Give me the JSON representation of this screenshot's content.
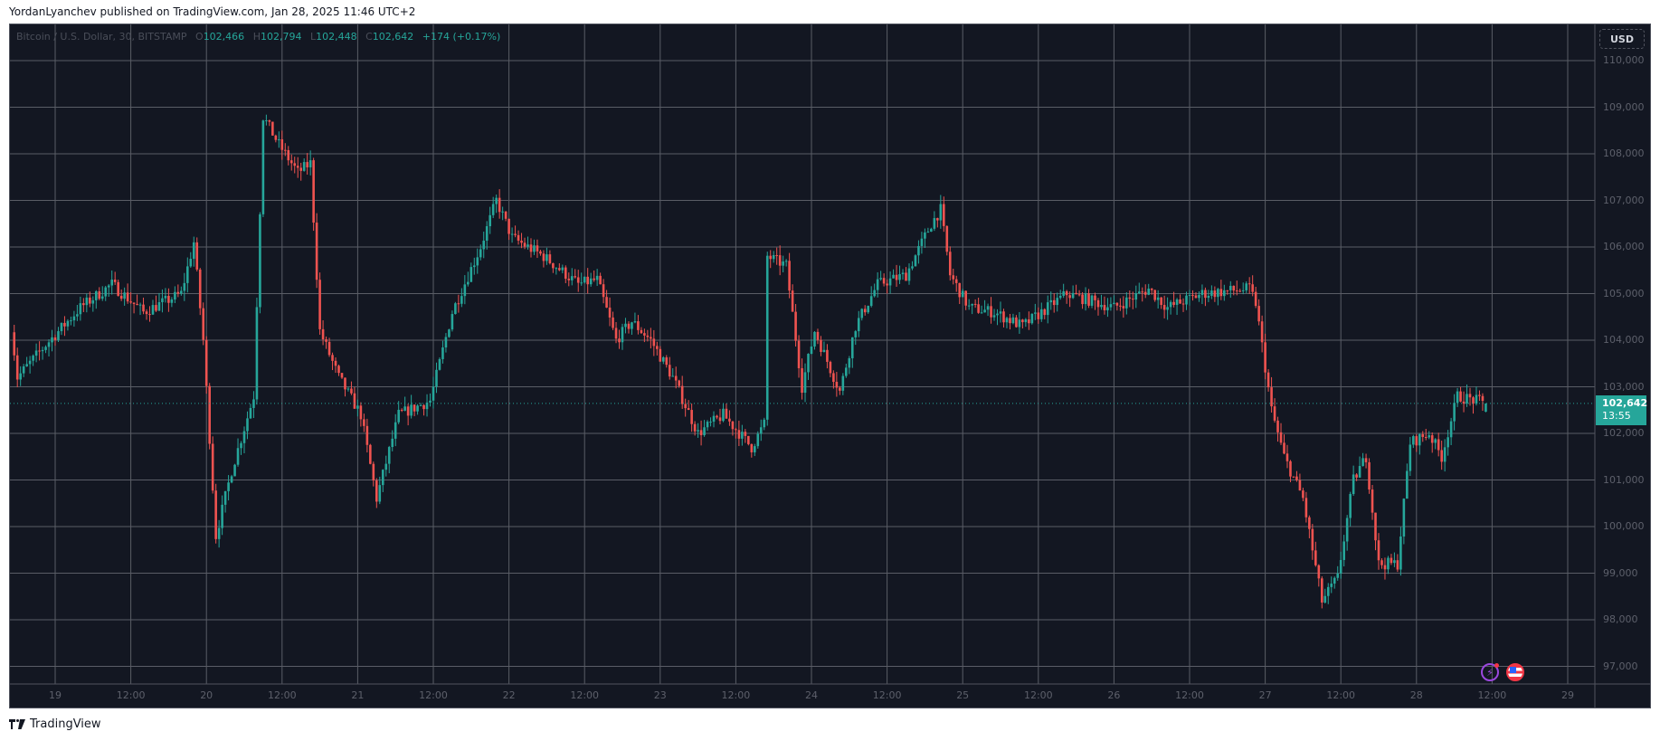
{
  "header": {
    "published_line": "YordanLyanchev published on TradingView.com, Jan 28, 2025 11:46 UTC+2"
  },
  "legend": {
    "symbol": "Bitcoin / U.S. Dollar, 30, BITSTAMP",
    "open_label": "O",
    "open": "102,466",
    "high_label": "H",
    "high": "102,794",
    "low_label": "L",
    "low": "102,448",
    "close_label": "C",
    "close": "102,642",
    "change": "+174 (+0.17%)"
  },
  "price_axis": {
    "currency": "USD",
    "ticks": [
      "110,000",
      "109,000",
      "108,000",
      "107,000",
      "106,000",
      "105,000",
      "104,000",
      "103,000",
      "102,000",
      "101,000",
      "100,000",
      "99,000",
      "98,000",
      "97,000"
    ],
    "last_price": "102,642",
    "countdown": "13:55"
  },
  "time_axis": {
    "ticks": [
      "19",
      "12:00",
      "20",
      "12:00",
      "21",
      "12:00",
      "22",
      "12:00",
      "23",
      "12:00",
      "24",
      "12:00",
      "25",
      "12:00",
      "26",
      "12:00",
      "27",
      "12:00",
      "28",
      "12:00",
      "29"
    ]
  },
  "footer": {
    "logo_text": "TradingView"
  },
  "colors": {
    "background": "#131722",
    "grid": "#5a5d66",
    "up": "#26a69a",
    "down": "#ef5350",
    "last_price_line": "#26a69a"
  },
  "chart_data": {
    "type": "candlestick",
    "title": "Bitcoin / U.S. Dollar, 30, BITSTAMP",
    "interval_minutes": 30,
    "xlabel": "",
    "ylabel": "USD",
    "ylim": [
      96700,
      110600
    ],
    "x_ticks": [
      "19",
      "12:00",
      "20",
      "12:00",
      "21",
      "12:00",
      "22",
      "12:00",
      "23",
      "12:00",
      "24",
      "12:00",
      "25",
      "12:00",
      "26",
      "12:00",
      "27",
      "12:00",
      "28",
      "12:00",
      "29"
    ],
    "y_ticks": [
      110000,
      109000,
      108000,
      107000,
      106000,
      105000,
      104000,
      103000,
      102000,
      101000,
      100000,
      99000,
      98000,
      97000
    ],
    "grid": true,
    "last_bar": {
      "open": 102466,
      "high": 102794,
      "low": 102448,
      "close": 102642,
      "change": 174,
      "change_pct": 0.17
    },
    "close_path_note": "approximate close prices at bar index (0 = Jan 19 00:00, 30-min bars)",
    "close_path": [
      [
        -14,
        104300
      ],
      [
        -12,
        103200
      ],
      [
        -3,
        103900
      ],
      [
        8,
        104700
      ],
      [
        18,
        105200
      ],
      [
        28,
        104600
      ],
      [
        40,
        105000
      ],
      [
        44,
        106100
      ],
      [
        47,
        104000
      ],
      [
        51,
        99800
      ],
      [
        56,
        101200
      ],
      [
        63,
        102800
      ],
      [
        66,
        108800
      ],
      [
        71,
        108200
      ],
      [
        77,
        107600
      ],
      [
        81,
        107800
      ],
      [
        84,
        104200
      ],
      [
        90,
        103200
      ],
      [
        97,
        102400
      ],
      [
        102,
        100600
      ],
      [
        109,
        102400
      ],
      [
        119,
        102700
      ],
      [
        126,
        104600
      ],
      [
        135,
        106000
      ],
      [
        140,
        107000
      ],
      [
        145,
        106200
      ],
      [
        155,
        105800
      ],
      [
        166,
        105200
      ],
      [
        172,
        105300
      ],
      [
        178,
        104000
      ],
      [
        183,
        104400
      ],
      [
        189,
        104000
      ],
      [
        196,
        103200
      ],
      [
        204,
        102000
      ],
      [
        212,
        102400
      ],
      [
        221,
        101700
      ],
      [
        225,
        102200
      ],
      [
        226,
        105800
      ],
      [
        232,
        105600
      ],
      [
        237,
        103000
      ],
      [
        241,
        104200
      ],
      [
        249,
        102900
      ],
      [
        254,
        104300
      ],
      [
        261,
        105200
      ],
      [
        270,
        105400
      ],
      [
        278,
        106500
      ],
      [
        281,
        106800
      ],
      [
        284,
        105400
      ],
      [
        290,
        104700
      ],
      [
        298,
        104600
      ],
      [
        307,
        104300
      ],
      [
        321,
        105000
      ],
      [
        336,
        104700
      ],
      [
        347,
        105100
      ],
      [
        353,
        104700
      ],
      [
        364,
        105000
      ],
      [
        379,
        105100
      ],
      [
        381,
        104800
      ],
      [
        386,
        102500
      ],
      [
        390,
        101500
      ],
      [
        396,
        100600
      ],
      [
        402,
        98400
      ],
      [
        407,
        98900
      ],
      [
        412,
        101000
      ],
      [
        416,
        101500
      ],
      [
        420,
        99200
      ],
      [
        426,
        99200
      ],
      [
        430,
        101800
      ],
      [
        436,
        102000
      ],
      [
        440,
        101500
      ],
      [
        445,
        102800
      ],
      [
        451,
        102700
      ],
      [
        454,
        102642
      ]
    ],
    "extremes": {
      "high": 109300,
      "high_date": "Jan 20",
      "low": 97800,
      "low_date": "Jan 27"
    }
  }
}
